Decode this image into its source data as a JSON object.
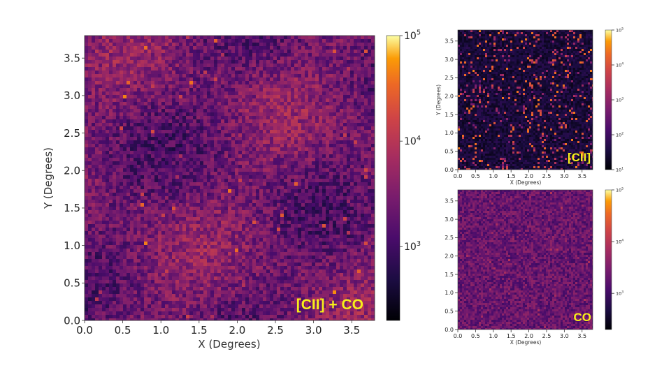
{
  "chart_data": [
    {
      "type": "heatmap",
      "panel": "main",
      "label": "[CII] + CO",
      "xlabel": "X (Degrees)",
      "ylabel": "Y (Degrees)",
      "xlim": [
        0.0,
        3.8
      ],
      "ylim": [
        0.0,
        3.8
      ],
      "xticks": [
        "0.0",
        "0.5",
        "1.0",
        "1.5",
        "2.0",
        "2.5",
        "3.0",
        "3.5"
      ],
      "yticks": [
        "0.0",
        "0.5",
        "1.0",
        "1.5",
        "2.0",
        "2.5",
        "3.0",
        "3.5"
      ],
      "colorbar": {
        "scale": "log",
        "range": [
          200,
          100000
        ],
        "ticks": [
          {
            "base": "10",
            "exp": "3",
            "value": 1000
          },
          {
            "base": "10",
            "exp": "4",
            "value": 10000
          },
          {
            "base": "10",
            "exp": "5",
            "value": 100000
          }
        ]
      },
      "colormap": "inferno"
    },
    {
      "type": "heatmap",
      "panel": "top-right",
      "label": "[CII]",
      "xlabel": "X (Degrees)",
      "ylabel": "Y (Degrees)",
      "xlim": [
        0.0,
        3.8
      ],
      "ylim": [
        0.0,
        3.8
      ],
      "xticks": [
        "0.0",
        "0.5",
        "1.0",
        "1.5",
        "2.0",
        "2.5",
        "3.0",
        "3.5"
      ],
      "yticks": [
        "0.0",
        "0.5",
        "1.0",
        "1.5",
        "2.0",
        "2.5",
        "3.0",
        "3.5"
      ],
      "colorbar": {
        "scale": "log",
        "range": [
          10,
          100000
        ],
        "ticks": [
          {
            "base": "10",
            "exp": "1",
            "value": 10
          },
          {
            "base": "10",
            "exp": "2",
            "value": 100
          },
          {
            "base": "10",
            "exp": "3",
            "value": 1000
          },
          {
            "base": "10",
            "exp": "4",
            "value": 10000
          },
          {
            "base": "10",
            "exp": "5",
            "value": 100000
          }
        ]
      },
      "colormap": "inferno"
    },
    {
      "type": "heatmap",
      "panel": "bottom-right",
      "label": "CO",
      "xlabel": "X (Degrees)",
      "ylabel": "Y (Degrees)",
      "xlim": [
        0.0,
        3.8
      ],
      "ylim": [
        0.0,
        3.8
      ],
      "xticks": [
        "0.0",
        "0.5",
        "1.0",
        "1.5",
        "2.0",
        "2.5",
        "3.0",
        "3.5"
      ],
      "yticks": [
        "0.0",
        "0.5",
        "1.0",
        "1.5",
        "2.0",
        "2.5",
        "3.0",
        "3.5"
      ],
      "colorbar": {
        "scale": "log",
        "range": [
          200,
          100000
        ],
        "ticks": [
          {
            "base": "10",
            "exp": "3",
            "value": 1000
          },
          {
            "base": "10",
            "exp": "4",
            "value": 10000
          },
          {
            "base": "10",
            "exp": "5",
            "value": 100000
          }
        ]
      },
      "colormap": "inferno"
    }
  ],
  "colors": {
    "label_yellow": "#f7ef1a",
    "map_dark": "#1a0a2e",
    "map_mid": "#6a2280",
    "map_bright": "#f08a30"
  }
}
